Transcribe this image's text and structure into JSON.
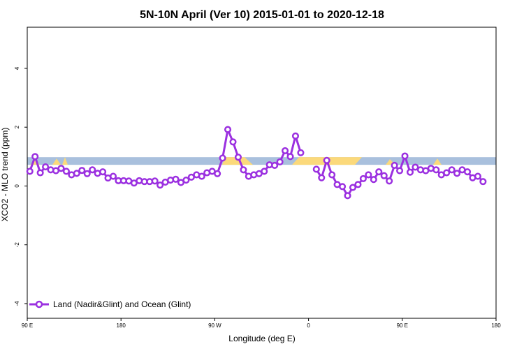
{
  "chart_data": {
    "type": "line",
    "title": "5N-10N April (Ver 10)   2015-01-01 to 2020-12-18",
    "xlabel": "Longitude (deg E)",
    "ylabel": "XCO2 - MLO trend (ppm)",
    "xlim": [
      90,
      450
    ],
    "ylim": [
      -4.5,
      5.4
    ],
    "x_ticks": [
      {
        "value": 90,
        "label": "90 E"
      },
      {
        "value": 180,
        "label": "180"
      },
      {
        "value": 270,
        "label": "90 W"
      },
      {
        "value": 360,
        "label": "0"
      },
      {
        "value": 450,
        "label": "90 E"
      },
      {
        "value": 540,
        "label": "180"
      }
    ],
    "y_ticks": [
      {
        "value": -4,
        "label": "-4"
      },
      {
        "value": -2,
        "label": "-2"
      },
      {
        "value": 0,
        "label": "0"
      },
      {
        "value": 2,
        "label": "2"
      },
      {
        "value": 4,
        "label": "4"
      }
    ],
    "land_band": {
      "y_range": [
        0.72,
        0.98
      ],
      "ocean_color": "#a9c0dd",
      "land_color": "#fbd97b"
    },
    "legend": {
      "position": "bottom-left"
    },
    "series": [
      {
        "name": "Land (Nadir&Glint) and Ocean (Glint)",
        "color": "#9b30e0",
        "points": [
          [
            92.5,
            0.5
          ],
          [
            97.5,
            1.0
          ],
          [
            102.5,
            0.45
          ],
          [
            107.5,
            0.65
          ],
          [
            112.5,
            0.55
          ],
          [
            117.5,
            0.52
          ],
          [
            122.5,
            0.6
          ],
          [
            127.5,
            0.5
          ],
          [
            132.5,
            0.38
          ],
          [
            137.5,
            0.43
          ],
          [
            142.5,
            0.53
          ],
          [
            147.5,
            0.42
          ],
          [
            152.5,
            0.55
          ],
          [
            157.5,
            0.43
          ],
          [
            162.5,
            0.48
          ],
          [
            167.5,
            0.27
          ],
          [
            172.5,
            0.33
          ],
          [
            177.5,
            0.18
          ],
          [
            182.5,
            0.18
          ],
          [
            187.5,
            0.17
          ],
          [
            192.5,
            0.1
          ],
          [
            197.5,
            0.18
          ],
          [
            202.5,
            0.15
          ],
          [
            207.5,
            0.15
          ],
          [
            212.5,
            0.17
          ],
          [
            217.5,
            0.03
          ],
          [
            222.5,
            0.13
          ],
          [
            227.5,
            0.2
          ],
          [
            232.5,
            0.23
          ],
          [
            237.5,
            0.12
          ],
          [
            242.5,
            0.2
          ],
          [
            247.5,
            0.3
          ],
          [
            252.5,
            0.38
          ],
          [
            257.5,
            0.33
          ],
          [
            262.5,
            0.45
          ],
          [
            267.5,
            0.5
          ],
          [
            272.5,
            0.42
          ],
          [
            277.5,
            0.95
          ],
          [
            282.5,
            1.92
          ],
          [
            287.5,
            1.5
          ],
          [
            292.5,
            0.98
          ],
          [
            297.5,
            0.55
          ],
          [
            302.5,
            0.33
          ],
          [
            307.5,
            0.38
          ],
          [
            312.5,
            0.42
          ],
          [
            317.5,
            0.5
          ],
          [
            322.5,
            0.72
          ],
          [
            327.5,
            0.7
          ],
          [
            332.5,
            0.82
          ],
          [
            337.5,
            1.2
          ],
          [
            342.5,
            1.0
          ],
          [
            347.5,
            1.7
          ],
          [
            352.5,
            1.13
          ],
          null,
          [
            367.5,
            0.57
          ],
          [
            372.5,
            0.28
          ],
          [
            377.5,
            0.87
          ],
          [
            382.5,
            0.38
          ],
          [
            387.5,
            0.05
          ],
          [
            392.5,
            -0.02
          ],
          [
            397.5,
            -0.33
          ],
          [
            402.5,
            -0.05
          ],
          [
            407.5,
            0.05
          ],
          [
            412.5,
            0.25
          ],
          [
            417.5,
            0.38
          ],
          [
            422.5,
            0.22
          ],
          [
            427.5,
            0.48
          ],
          [
            432.5,
            0.35
          ],
          [
            437.5,
            0.17
          ],
          [
            442.5,
            0.7
          ],
          [
            447.5,
            0.52
          ],
          [
            452.5,
            1.02
          ],
          [
            457.5,
            0.47
          ],
          [
            462.5,
            0.64
          ],
          [
            467.5,
            0.55
          ],
          [
            472.5,
            0.52
          ],
          [
            477.5,
            0.6
          ],
          [
            482.5,
            0.55
          ],
          [
            487.5,
            0.38
          ],
          [
            492.5,
            0.45
          ],
          [
            497.5,
            0.55
          ],
          [
            502.5,
            0.43
          ],
          [
            507.5,
            0.55
          ],
          [
            512.5,
            0.48
          ],
          [
            517.5,
            0.28
          ],
          [
            522.5,
            0.33
          ],
          [
            527.5,
            0.15
          ]
        ]
      }
    ]
  }
}
